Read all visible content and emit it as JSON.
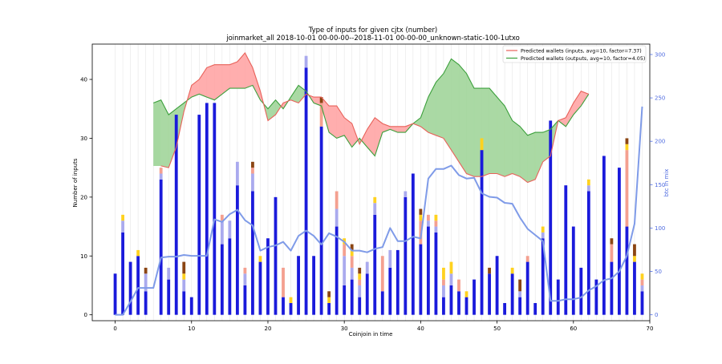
{
  "chart_data": {
    "type": "bar",
    "title": "Type of inputs for given cjtx (number)",
    "subtitle": "joinmarket_all 2018-10-01 00-00-00--2018-11-01 00-00-00_unknown-static-100-1utxo",
    "xlabel": "Coinjoin in time",
    "ylabel": "Number of inputs",
    "y2label": "btc in mix",
    "xlim": [
      -3,
      70
    ],
    "ylim": [
      -1,
      46
    ],
    "y2lim": [
      -6.8,
      312
    ],
    "x_ticks": [
      0,
      10,
      20,
      30,
      40,
      50,
      60,
      70
    ],
    "y_ticks": [
      0,
      10,
      20,
      30,
      40
    ],
    "y2_ticks": [
      0,
      50,
      100,
      150,
      200,
      250,
      300
    ],
    "grid": "vertical",
    "legend_position": "top-right",
    "colors": {
      "bar_main": "#1a1adb",
      "bar_lavender": "#aaaaee",
      "bar_salmon": "#f4a090",
      "bar_yellow": "#ffd21f",
      "bar_brown": "#8b4513",
      "inputs_line": "#e8625a",
      "inputs_fill": "#ffaaaa",
      "outputs_line": "#3ca03c",
      "outputs_fill": "#a6d8a0",
      "btc_line": "#7f9be8",
      "right_axis": "#4f6be0"
    },
    "series": [
      {
        "name": "Predicted wallets (inputs, avg=10, factor=7.37)",
        "x": [
          6,
          7,
          8,
          9,
          10,
          11,
          12,
          13,
          14,
          15,
          16,
          17,
          18,
          19,
          20,
          21,
          22,
          23,
          24,
          25,
          26,
          27,
          28,
          29,
          30,
          31,
          32,
          33,
          34,
          35,
          36,
          37,
          38,
          39,
          40,
          41,
          42,
          43,
          44,
          45,
          46,
          47,
          48,
          49,
          50,
          51,
          52,
          53,
          54,
          55,
          56,
          57,
          58,
          59,
          60,
          61,
          62
        ],
        "values": [
          25.3,
          25,
          28.5,
          34.5,
          39,
          40,
          42,
          42.5,
          42.5,
          42.5,
          43,
          44.5,
          42,
          38,
          33,
          34,
          36,
          36.5,
          36,
          37.5,
          37,
          37,
          35.5,
          35.5,
          33.5,
          32.5,
          29,
          31.5,
          33.5,
          32.5,
          32,
          32,
          32,
          32.5,
          32,
          31,
          30.5,
          30,
          28,
          26,
          24,
          23.5,
          23.5,
          24,
          24,
          23.5,
          24,
          23.5,
          22.5,
          23,
          26,
          27,
          33,
          33.5,
          36,
          38,
          37.5
        ]
      },
      {
        "name": "Predicted wallets (outputs, avg=10, factor=4.05)",
        "x": [
          5,
          6,
          7,
          8,
          9,
          10,
          11,
          12,
          13,
          14,
          15,
          16,
          17,
          18,
          19,
          20,
          21,
          22,
          23,
          24,
          25,
          26,
          27,
          28,
          29,
          30,
          31,
          32,
          33,
          34,
          35,
          36,
          37,
          38,
          39,
          40,
          41,
          42,
          43,
          44,
          45,
          46,
          47,
          48,
          49,
          50,
          51,
          52,
          53,
          54,
          55,
          56,
          57,
          58,
          59,
          60,
          61,
          62
        ],
        "values": [
          36,
          36.5,
          34,
          35,
          36,
          37,
          37.5,
          37,
          36.5,
          37.5,
          38.5,
          38.5,
          38.5,
          39,
          36.5,
          35,
          36.5,
          35,
          37,
          39,
          38,
          36,
          35.5,
          31,
          30,
          30.5,
          28.5,
          30,
          28.5,
          27,
          31,
          31.5,
          31,
          31,
          32.5,
          33.5,
          37,
          39.5,
          41,
          43.5,
          42.5,
          41,
          38.5,
          38.5,
          38.5,
          37,
          35.5,
          33,
          32,
          30.5,
          31,
          31,
          31.5,
          33,
          32,
          34,
          35.5,
          37.5
        ]
      },
      {
        "name": "btc in mix",
        "axis": "right",
        "x": [
          0,
          1,
          2,
          3,
          4,
          5,
          6,
          7,
          8,
          9,
          10,
          11,
          12,
          13,
          14,
          15,
          16,
          17,
          18,
          19,
          20,
          21,
          22,
          23,
          24,
          25,
          26,
          27,
          28,
          29,
          30,
          31,
          32,
          33,
          34,
          35,
          36,
          37,
          38,
          39,
          40,
          41,
          42,
          43,
          44,
          45,
          46,
          47,
          48,
          49,
          50,
          51,
          52,
          53,
          54,
          55,
          56,
          57,
          58,
          59,
          60,
          61,
          62,
          63,
          64,
          65,
          66,
          67,
          68,
          69
        ],
        "values": [
          0,
          0,
          15,
          31,
          31,
          31,
          66,
          67,
          67,
          69,
          68,
          68,
          68,
          110,
          107,
          116,
          121,
          109,
          103,
          74,
          78,
          80,
          84,
          74,
          91,
          97,
          91,
          81,
          94,
          90,
          84,
          74,
          74,
          72,
          76,
          78,
          100,
          85,
          85,
          90,
          88,
          157,
          168,
          168,
          172,
          161,
          157,
          158,
          140,
          136,
          135,
          129,
          128,
          112,
          99,
          92,
          85,
          16,
          16,
          18,
          18,
          20,
          28,
          33,
          40,
          42,
          50,
          68,
          105,
          240
        ]
      }
    ],
    "stacked_bars": {
      "x": [
        0,
        1,
        2,
        3,
        4,
        5,
        6,
        7,
        8,
        9,
        10,
        11,
        12,
        13,
        14,
        15,
        16,
        17,
        18,
        19,
        20,
        21,
        22,
        23,
        24,
        25,
        26,
        27,
        28,
        29,
        30,
        31,
        32,
        33,
        34,
        35,
        36,
        37,
        38,
        39,
        40,
        41,
        42,
        43,
        44,
        45,
        46,
        47,
        48,
        49,
        50,
        51,
        52,
        53,
        54,
        55,
        56,
        57,
        58,
        59,
        60,
        61,
        62,
        63,
        64,
        65,
        66,
        67,
        68,
        69
      ],
      "main": [
        7,
        14,
        9,
        10,
        4,
        0,
        23,
        6,
        34,
        4,
        3,
        34,
        36,
        36,
        12,
        13,
        22,
        5,
        21,
        9,
        13,
        20,
        3,
        2,
        10,
        42,
        10,
        32,
        2,
        15,
        5,
        6,
        3,
        7,
        17,
        4,
        8,
        11,
        20,
        24,
        12,
        15,
        14,
        3,
        5,
        4,
        3,
        6,
        28,
        7,
        10,
        2,
        7,
        3,
        9,
        2,
        13,
        33,
        6,
        22,
        15,
        8,
        21,
        6,
        27,
        9,
        25,
        15,
        9,
        4
      ],
      "lavender": [
        0,
        2,
        0,
        0,
        3,
        0,
        1,
        2,
        0,
        2,
        0,
        0,
        0,
        0,
        4,
        3,
        4,
        2,
        3,
        0,
        0,
        0,
        0,
        0,
        0,
        2,
        0,
        0,
        0,
        3,
        5,
        2,
        2,
        2,
        2,
        0,
        3,
        0,
        1,
        0,
        0,
        1,
        1,
        2,
        2,
        0,
        0,
        0,
        0,
        0,
        0,
        0,
        0,
        1,
        0,
        0,
        1,
        0,
        0,
        0,
        0,
        0,
        1,
        0,
        0,
        0,
        0,
        0,
        0,
        1
      ],
      "salmon": [
        0,
        0,
        0,
        0,
        0,
        0,
        1,
        0,
        0,
        0,
        0,
        0,
        0,
        0,
        1,
        0,
        0,
        1,
        1,
        0,
        0,
        0,
        5,
        0,
        0,
        0,
        0,
        4,
        0,
        3,
        2,
        2,
        1,
        0,
        0,
        6,
        0,
        0,
        0,
        0,
        4,
        1,
        1,
        1,
        0,
        2,
        0,
        0,
        0,
        0,
        0,
        0,
        0,
        0,
        1,
        0,
        0,
        0,
        0,
        0,
        0,
        0,
        0,
        0,
        0,
        3,
        0,
        13,
        0,
        1
      ],
      "yellow": [
        0,
        1,
        0,
        1,
        0,
        0,
        0,
        0,
        0,
        1,
        0,
        0,
        0,
        0,
        0,
        0,
        0,
        0,
        0,
        1,
        0,
        0,
        0,
        1,
        0,
        0,
        0,
        0,
        1,
        0,
        1,
        1,
        1,
        0,
        1,
        0,
        0,
        0,
        0,
        0,
        1,
        0,
        1,
        2,
        2,
        0,
        1,
        0,
        2,
        0,
        0,
        0,
        1,
        0,
        0,
        0,
        1,
        0,
        0,
        0,
        0,
        0,
        1,
        0,
        0,
        0,
        0,
        1,
        1,
        1
      ],
      "brown": [
        0,
        0,
        0,
        0,
        1,
        0,
        0,
        0,
        0,
        2,
        0,
        0,
        0,
        0,
        0,
        0,
        0,
        0,
        1,
        0,
        0,
        0,
        0,
        0,
        0,
        0,
        0,
        1,
        1,
        0,
        0,
        1,
        1,
        0,
        0,
        0,
        0,
        0,
        0,
        0,
        1,
        0,
        0,
        0,
        0,
        0,
        0,
        0,
        0,
        1,
        0,
        0,
        0,
        2,
        0,
        0,
        0,
        0,
        0,
        0,
        0,
        0,
        0,
        0,
        0,
        1,
        0,
        1,
        2,
        0
      ]
    }
  }
}
